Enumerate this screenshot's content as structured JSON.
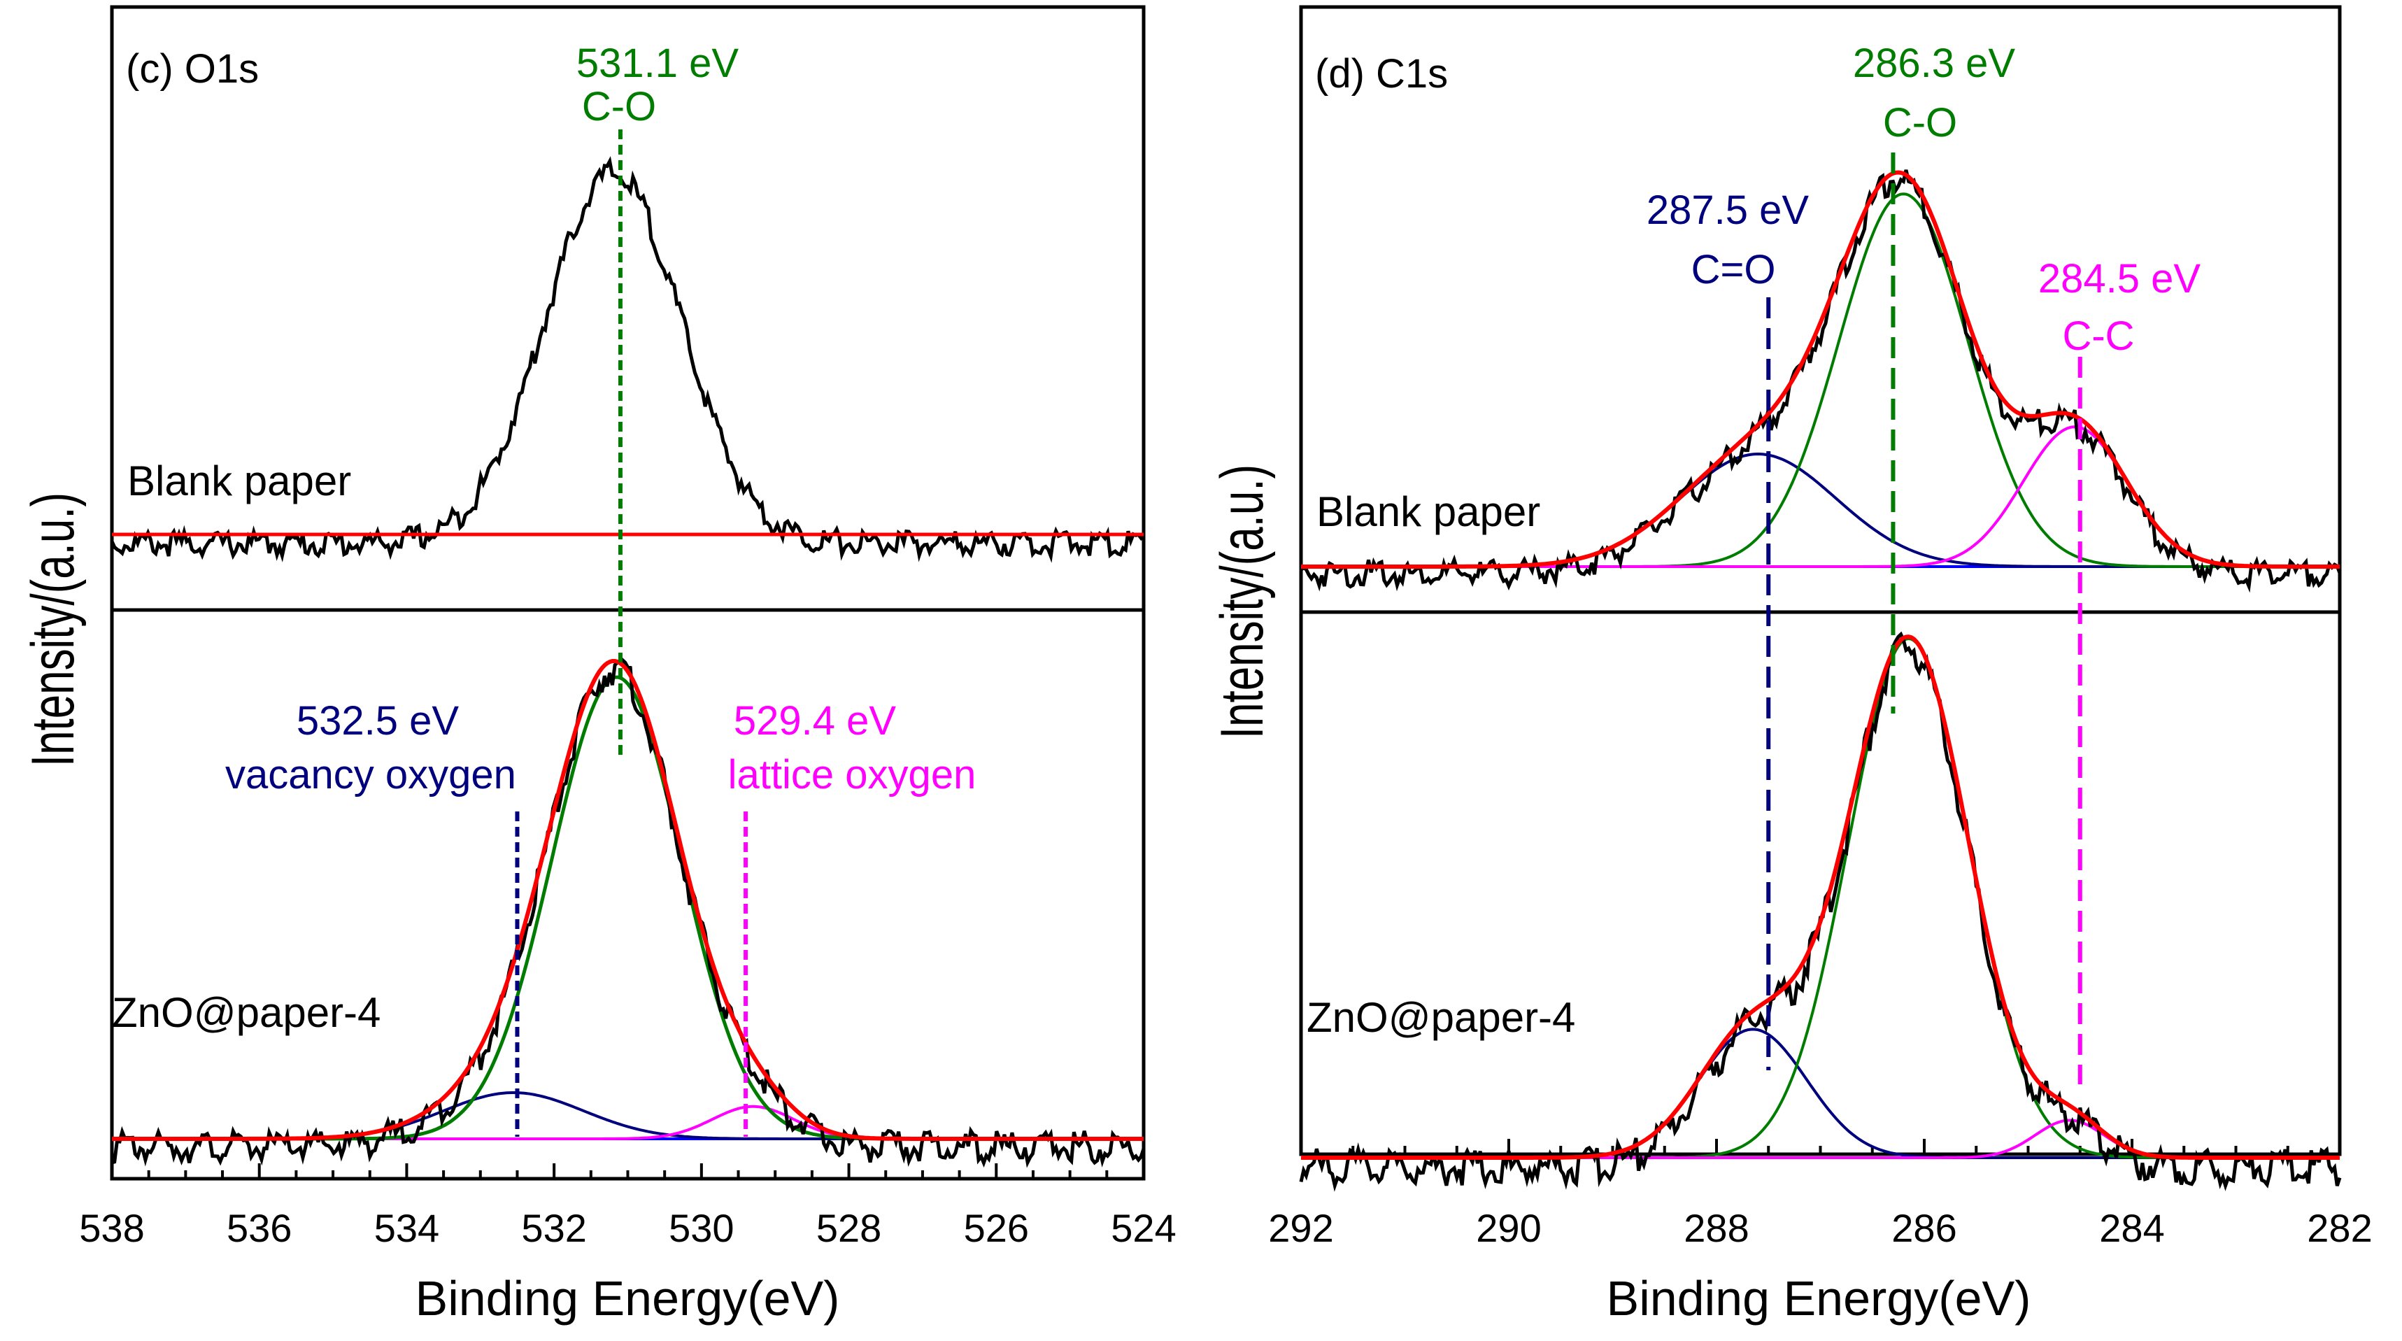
{
  "chart_data": [
    {
      "panel": "c",
      "type": "line",
      "panel_label": "(c) O1s",
      "xlabel": "Binding Energy(eV)",
      "ylabel": "Intensity/(a.u.)",
      "xlim": [
        538,
        524
      ],
      "x_ticks": [
        538,
        536,
        534,
        532,
        530,
        528,
        526,
        524
      ],
      "colors": {
        "raw": "#000000",
        "fit": "#ff0000",
        "co": "#007d00",
        "vacancy": "#00007f",
        "lattice": "#ff00ff",
        "background": "#0000ff"
      },
      "spectra": [
        {
          "name": "Blank paper",
          "raw": {
            "center": 531.2,
            "sigma": 0.92,
            "amp": 1.0,
            "baseline": 0.0
          },
          "fit_line": {
            "note": "flat",
            "value": 0.0
          }
        },
        {
          "name": "ZnO@paper-4",
          "components": [
            {
              "name": "C-O",
              "center": 531.15,
              "sigma": 0.88,
              "amp": 1.0
            },
            {
              "name": "vacancy oxygen",
              "center": 532.55,
              "sigma": 0.95,
              "amp": 0.1
            },
            {
              "name": "lattice oxygen",
              "center": 529.3,
              "sigma": 0.55,
              "amp": 0.07
            }
          ]
        }
      ],
      "peak_markers": [
        {
          "energy": 531.1,
          "label_value": "531.1 eV",
          "label_name": "C-O",
          "color": "#007d00"
        },
        {
          "energy": 532.5,
          "label_value": "532.5 eV",
          "label_name": "vacancy oxygen",
          "color": "#00007f"
        },
        {
          "energy": 529.4,
          "label_value": "529.4 eV",
          "label_name": "lattice oxygen",
          "color": "#ff00ff"
        }
      ]
    },
    {
      "panel": "d",
      "type": "line",
      "panel_label": "(d) C1s",
      "xlabel": "Binding Energy(eV)",
      "ylabel": "Intensity/(a.u.)",
      "xlim": [
        292,
        282
      ],
      "x_ticks": [
        292,
        290,
        288,
        286,
        284,
        282
      ],
      "colors": {
        "raw": "#000000",
        "fit": "#ff0000",
        "co": "#007d00",
        "ceo": "#00007f",
        "cc": "#ff00ff",
        "background": "#0000ff"
      },
      "spectra": [
        {
          "name": "Blank paper",
          "components": [
            {
              "name": "C=O",
              "center": 287.6,
              "sigma": 0.75,
              "amp": 0.29
            },
            {
              "name": "C-O",
              "center": 286.2,
              "sigma": 0.62,
              "amp": 0.96
            },
            {
              "name": "C-C",
              "center": 284.55,
              "sigma": 0.5,
              "amp": 0.36
            }
          ]
        },
        {
          "name": "ZnO@paper-4",
          "components": [
            {
              "name": "C=O",
              "center": 287.65,
              "sigma": 0.52,
              "amp": 0.24
            },
            {
              "name": "C-O",
              "center": 286.15,
              "sigma": 0.58,
              "amp": 0.97
            },
            {
              "name": "C-C",
              "center": 284.6,
              "sigma": 0.33,
              "amp": 0.07
            }
          ]
        }
      ],
      "peak_markers": [
        {
          "energy": 286.3,
          "label_value": "286.3 eV",
          "label_name": "C-O",
          "color": "#007d00"
        },
        {
          "energy": 287.5,
          "label_value": "287.5 eV",
          "label_name": "C=O",
          "color": "#00007f"
        },
        {
          "energy": 284.5,
          "label_value": "284.5 eV",
          "label_name": "C-C",
          "color": "#ff00ff"
        }
      ]
    }
  ]
}
